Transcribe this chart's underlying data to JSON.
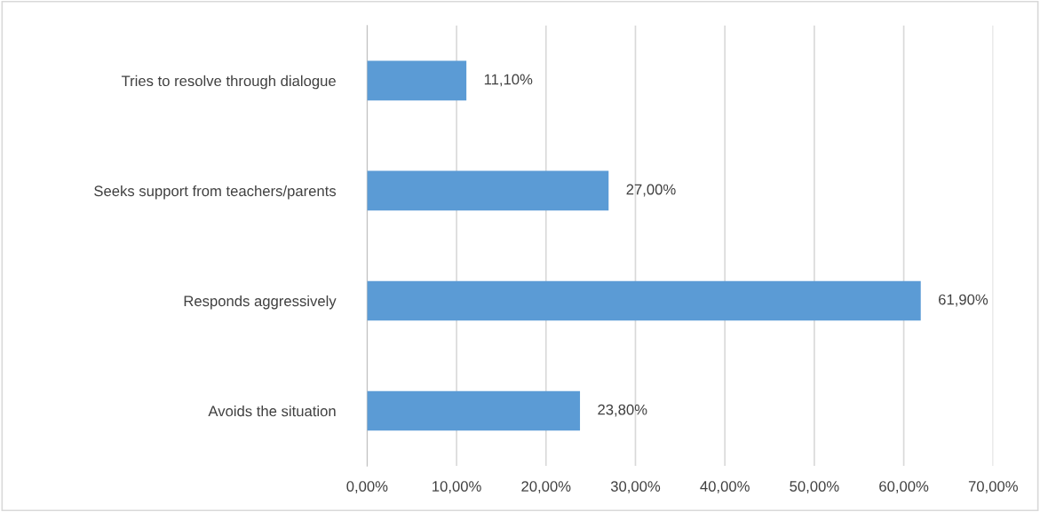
{
  "chart_data": {
    "type": "bar",
    "orientation": "horizontal",
    "categories": [
      "Tries to resolve through dialogue",
      "Seeks support from teachers/parents",
      "Responds aggressively",
      "Avoids the situation"
    ],
    "values": [
      11.1,
      27.0,
      61.9,
      23.8
    ],
    "value_labels": [
      "11,10%",
      "27,00%",
      "61,90%",
      "23,80%"
    ],
    "color": "#5b9bd5",
    "xlim": [
      0,
      70
    ],
    "xticks": [
      {
        "value": 0,
        "label": "0,00%"
      },
      {
        "value": 10,
        "label": "10,00%"
      },
      {
        "value": 20,
        "label": "20,00%"
      },
      {
        "value": 30,
        "label": "30,00%"
      },
      {
        "value": 40,
        "label": "40,00%"
      },
      {
        "value": 50,
        "label": "50,00%"
      },
      {
        "value": 60,
        "label": "60,00%"
      },
      {
        "value": 70,
        "label": "70,00%"
      }
    ],
    "grid": "x"
  }
}
